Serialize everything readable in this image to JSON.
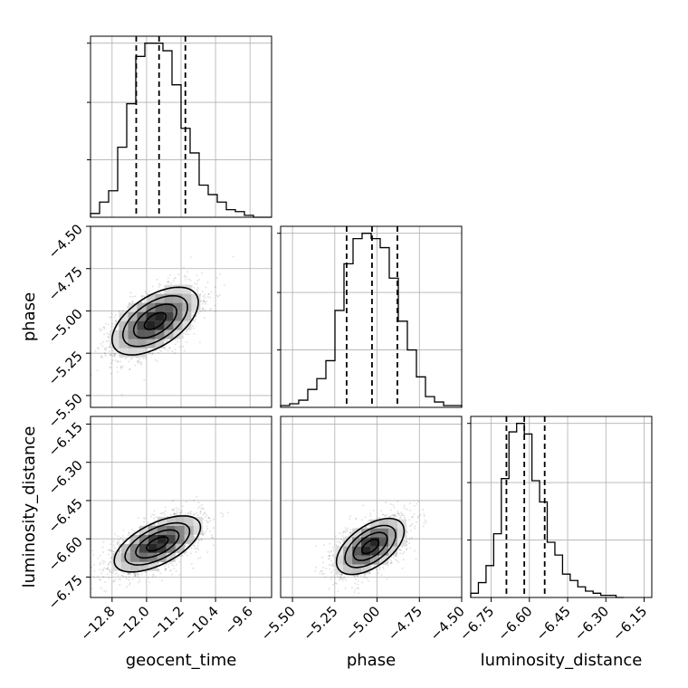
{
  "chart_data": {
    "type": "corner",
    "parameters": [
      "geocent_time",
      "phase",
      "luminosity_distance"
    ],
    "axes": {
      "geocent_time": {
        "range": [
          -13.3,
          -9.1
        ],
        "ticks": [
          -12.8,
          -12.0,
          -11.2,
          -10.4,
          -9.6
        ],
        "tick_labels": [
          "−12.8",
          "−12.0",
          "−11.2",
          "−10.4",
          "−9.6"
        ]
      },
      "phase": {
        "range": [
          -5.57,
          -4.5
        ],
        "ticks": [
          -5.5,
          -5.25,
          -5.0,
          -4.75,
          -4.5
        ],
        "tick_labels": [
          "−5.50",
          "−5.25",
          "−5.00",
          "−4.75",
          "−4.50"
        ]
      },
      "luminosity_distance": {
        "range": [
          -6.83,
          -6.12
        ],
        "ticks": [
          -6.75,
          -6.6,
          -6.45,
          -6.3,
          -6.15
        ],
        "tick_labels": [
          "−6.75",
          "−6.60",
          "−6.45",
          "−6.30",
          "−6.15"
        ]
      }
    },
    "marginals": [
      {
        "parameter": "geocent_time",
        "quantiles": [
          -12.24,
          -11.71,
          -11.1
        ],
        "bins": [
          -13.3,
          -13.09,
          -12.88,
          -12.67,
          -12.46,
          -12.25,
          -12.04,
          -11.83,
          -11.62,
          -11.41,
          -11.2,
          -10.99,
          -10.78,
          -10.57,
          -10.36,
          -10.15,
          -9.94,
          -9.73,
          -9.52,
          -9.31,
          -9.1
        ],
        "counts": [
          2,
          8,
          14,
          37,
          60,
          85,
          92,
          92,
          88,
          70,
          47,
          34,
          17,
          12,
          8,
          4,
          3,
          1,
          0,
          0
        ]
      },
      {
        "parameter": "phase",
        "quantiles": [
          -5.18,
          -5.03,
          -4.88
        ],
        "bins": [
          -5.57,
          -5.5165,
          -5.463,
          -5.4095,
          -5.356,
          -5.3025,
          -5.249,
          -5.1955,
          -5.142,
          -5.0885,
          -5.035,
          -4.9815,
          -4.928,
          -4.8745,
          -4.821,
          -4.7675,
          -4.714,
          -4.6605,
          -4.607,
          -4.5535,
          -4.5
        ],
        "counts": [
          1,
          2,
          4,
          10,
          16,
          26,
          54,
          80,
          94,
          97,
          94,
          89,
          72,
          48,
          32,
          17,
          6,
          3,
          1,
          1
        ]
      },
      {
        "parameter": "luminosity_distance",
        "quantiles": [
          -6.69,
          -6.62,
          -6.54
        ],
        "bins": [
          -6.83,
          -6.8,
          -6.77,
          -6.74,
          -6.71,
          -6.68,
          -6.65,
          -6.62,
          -6.59,
          -6.56,
          -6.53,
          -6.5,
          -6.47,
          -6.44,
          -6.41,
          -6.38,
          -6.35,
          -6.32,
          -6.29,
          -6.26,
          -6.23
        ],
        "counts": [
          2,
          7,
          15,
          30,
          56,
          78,
          82,
          77,
          55,
          45,
          26,
          20,
          11,
          8,
          5,
          3,
          2,
          1,
          1,
          0
        ]
      }
    ],
    "joint": [
      {
        "x": "geocent_time",
        "y": "phase",
        "center": [
          -11.8,
          -5.06
        ],
        "sigma": [
          0.5,
          0.1
        ],
        "correlation": 0.55,
        "scatter_points": 2400
      },
      {
        "x": "geocent_time",
        "y": "luminosity_distance",
        "center": [
          -11.75,
          -6.62
        ],
        "sigma": [
          0.5,
          0.055
        ],
        "correlation": 0.6,
        "scatter_points": 2400
      },
      {
        "x": "phase",
        "y": "luminosity_distance",
        "center": [
          -5.04,
          -6.63
        ],
        "sigma": [
          0.1,
          0.055
        ],
        "correlation": 0.55,
        "scatter_points": 2400
      }
    ],
    "contour_levels": [
      0.118,
      0.393,
      0.675,
      0.865
    ],
    "grid": true,
    "quantile_line_style": "dashed"
  }
}
